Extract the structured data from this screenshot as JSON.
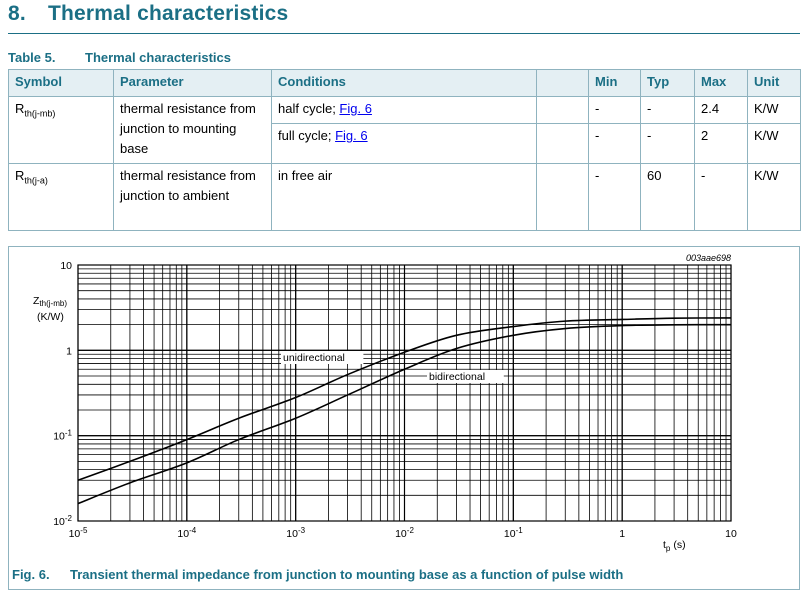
{
  "section": {
    "number": "8.",
    "title": "Thermal characteristics"
  },
  "table": {
    "caption_number": "Table 5.",
    "caption_title": "Thermal characteristics",
    "headers": [
      "Symbol",
      "Parameter",
      "Conditions",
      "",
      "Min",
      "Typ",
      "Max",
      "Unit"
    ],
    "rows": [
      {
        "symbol": "R",
        "symbol_sub": "th(j-mb)",
        "parameter": "thermal resistance from junction to mounting base",
        "conditions": [
          {
            "text": "half cycle; ",
            "link": "Fig. 6",
            "min": "-",
            "typ": "-",
            "max": "2.4",
            "unit": "K/W"
          },
          {
            "text": "full cycle; ",
            "link": "Fig. 6",
            "min": "-",
            "typ": "-",
            "max": "2",
            "unit": "K/W"
          }
        ]
      },
      {
        "symbol": "R",
        "symbol_sub": "th(j-a)",
        "parameter": "thermal resistance from junction to ambient",
        "conditions": [
          {
            "text": "in free air",
            "link": "",
            "min": "-",
            "typ": "60",
            "max": "-",
            "unit": "K/W"
          }
        ]
      }
    ]
  },
  "figure": {
    "number": "Fig. 6.",
    "title": "Transient thermal impedance from junction to mounting base as a function of pulse width",
    "code": "003aae698"
  },
  "chart_data": {
    "type": "line",
    "xscale": "log",
    "yscale": "log",
    "xlim": [
      1e-05,
      10
    ],
    "ylim": [
      0.01,
      10
    ],
    "grid": true,
    "xlabel": "t",
    "xlabel_sub": "p",
    "xlabel_unit": "(s)",
    "ylabel": "Z",
    "ylabel_sub": "th(j-mb)",
    "ylabel_unit": "(K/W)",
    "xticks": [
      {
        "base": "10",
        "exp": "-5"
      },
      {
        "base": "10",
        "exp": "-4"
      },
      {
        "base": "10",
        "exp": "-3"
      },
      {
        "base": "10",
        "exp": "-2"
      },
      {
        "base": "10",
        "exp": "-1"
      },
      {
        "base": "1",
        "exp": ""
      },
      {
        "base": "10",
        "exp": ""
      }
    ],
    "yticks": [
      {
        "base": "10",
        "exp": "-2"
      },
      {
        "base": "10",
        "exp": "-1"
      },
      {
        "base": "1",
        "exp": ""
      },
      {
        "base": "10",
        "exp": ""
      }
    ],
    "x": [
      1e-05,
      3e-05,
      0.0001,
      0.0003,
      0.001,
      0.003,
      0.01,
      0.03,
      0.1,
      0.3,
      1,
      3,
      10
    ],
    "series": [
      {
        "name": "unidirectional",
        "values": [
          0.03,
          0.05,
          0.09,
          0.16,
          0.28,
          0.52,
          0.95,
          1.5,
          1.9,
          2.2,
          2.3,
          2.38,
          2.4
        ]
      },
      {
        "name": "bidirectional",
        "values": [
          0.016,
          0.028,
          0.048,
          0.09,
          0.16,
          0.3,
          0.6,
          1.05,
          1.5,
          1.8,
          1.95,
          1.99,
          2.0
        ]
      }
    ]
  }
}
